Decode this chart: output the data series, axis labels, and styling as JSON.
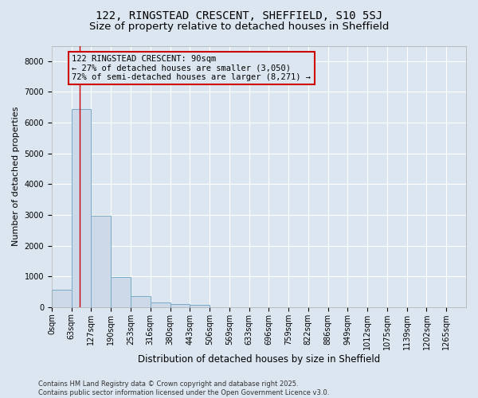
{
  "title": "122, RINGSTEAD CRESCENT, SHEFFIELD, S10 5SJ",
  "subtitle": "Size of property relative to detached houses in Sheffield",
  "xlabel": "Distribution of detached houses by size in Sheffield",
  "ylabel": "Number of detached properties",
  "bin_labels": [
    "0sqm",
    "63sqm",
    "127sqm",
    "190sqm",
    "253sqm",
    "316sqm",
    "380sqm",
    "443sqm",
    "506sqm",
    "569sqm",
    "633sqm",
    "696sqm",
    "759sqm",
    "822sqm",
    "886sqm",
    "949sqm",
    "1012sqm",
    "1075sqm",
    "1139sqm",
    "1202sqm",
    "1265sqm"
  ],
  "bar_values": [
    570,
    6450,
    2980,
    970,
    360,
    160,
    110,
    70,
    0,
    0,
    0,
    0,
    0,
    0,
    0,
    0,
    0,
    0,
    0,
    0
  ],
  "bar_color": "#ccd9e8",
  "bar_edge_color": "#7aaac8",
  "property_line_x": 90,
  "annotation_text": "122 RINGSTEAD CRESCENT: 90sqm\n← 27% of detached houses are smaller (3,050)\n72% of semi-detached houses are larger (8,271) →",
  "annotation_box_color": "#cc0000",
  "ylim": [
    0,
    8500
  ],
  "yticks": [
    0,
    1000,
    2000,
    3000,
    4000,
    5000,
    6000,
    7000,
    8000
  ],
  "bin_width": 63,
  "background_color": "#dce6f0",
  "grid_color": "#ffffff",
  "footer_text": "Contains HM Land Registry data © Crown copyright and database right 2025.\nContains public sector information licensed under the Open Government Licence v3.0.",
  "title_fontsize": 10,
  "subtitle_fontsize": 9.5,
  "xlabel_fontsize": 8.5,
  "ylabel_fontsize": 8,
  "tick_fontsize": 7,
  "annotation_fontsize": 7.5,
  "footer_fontsize": 6
}
